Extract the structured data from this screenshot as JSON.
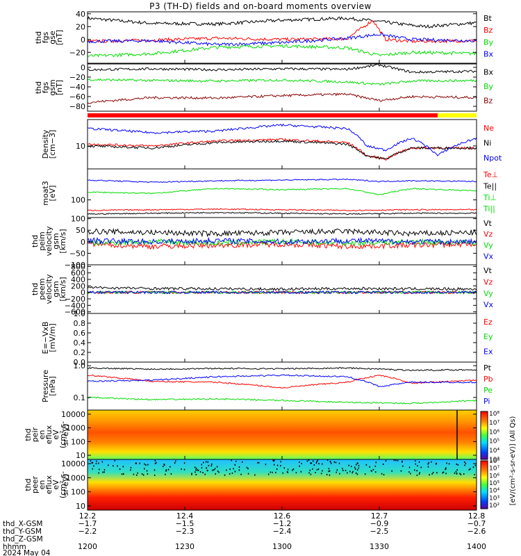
{
  "title": "P3 (TH-D) fields and on-board moments overview",
  "colors": {
    "black": "#000000",
    "red": "#ff0000",
    "green": "#00dd00",
    "blue": "#0000ff",
    "darkred": "#8b0000",
    "yellow": "#ffff00",
    "bar_red": "#ff0000"
  },
  "chart_data": [
    {
      "id": "fgs_gse",
      "type": "line",
      "ylabel": [
        "thd",
        "fgs",
        "gse",
        "[nT]"
      ],
      "ylim": [
        -37,
        43
      ],
      "yticks": [
        "40",
        "20",
        "0",
        "−20"
      ],
      "ytick_values": [
        40,
        20,
        0,
        -20
      ],
      "series": [
        {
          "name": "Bt",
          "color": "black",
          "x": [
            12.2,
            12.3,
            12.4,
            12.5,
            12.6,
            12.65,
            12.7,
            12.72,
            12.8
          ],
          "y": [
            33,
            25,
            24,
            30,
            33,
            28,
            22,
            20,
            26
          ]
        },
        {
          "name": "Bz",
          "color": "red",
          "x": [
            12.2,
            12.3,
            12.4,
            12.5,
            12.6,
            12.64,
            12.66,
            12.7,
            12.8
          ],
          "y": [
            -3,
            -1,
            2,
            0,
            1,
            30,
            0,
            -3,
            -2
          ]
        },
        {
          "name": "By",
          "color": "green",
          "x": [
            12.2,
            12.3,
            12.4,
            12.5,
            12.6,
            12.65,
            12.7,
            12.8
          ],
          "y": [
            -26,
            -22,
            -12,
            -10,
            -13,
            -25,
            -20,
            -22
          ]
        },
        {
          "name": "Bx",
          "color": "blue",
          "x": [
            12.2,
            12.3,
            12.4,
            12.5,
            12.6,
            12.65,
            12.7,
            12.8
          ],
          "y": [
            -3,
            -2,
            -8,
            -5,
            2,
            8,
            0,
            -2
          ]
        }
      ],
      "legend": [
        {
          "label": "Bt",
          "color": "black"
        },
        {
          "label": "Bz",
          "color": "red"
        },
        {
          "label": "By",
          "color": "green"
        },
        {
          "label": "Bx",
          "color": "blue"
        }
      ]
    },
    {
      "id": "fgs_gsm",
      "type": "line",
      "ylabel": [
        "thd",
        "fgs",
        "gsm",
        "[nT]"
      ],
      "ylim": [
        -90,
        7
      ],
      "yticks": [
        "0",
        "−20",
        "−40",
        "−60",
        "−80"
      ],
      "ytick_values": [
        0,
        -20,
        -40,
        -60,
        -80
      ],
      "series": [
        {
          "name": "Bx",
          "color": "black",
          "x": [
            12.2,
            12.3,
            12.4,
            12.5,
            12.6,
            12.65,
            12.7,
            12.8
          ],
          "y": [
            -5,
            -3,
            -5,
            -3,
            -4,
            5,
            -10,
            -8
          ]
        },
        {
          "name": "By",
          "color": "green",
          "x": [
            12.2,
            12.3,
            12.4,
            12.5,
            12.6,
            12.65,
            12.7,
            12.8
          ],
          "y": [
            -25,
            -27,
            -28,
            -26,
            -30,
            -35,
            -28,
            -27
          ]
        },
        {
          "name": "Bz",
          "color": "darkred",
          "x": [
            12.2,
            12.3,
            12.4,
            12.5,
            12.6,
            12.65,
            12.7,
            12.8
          ],
          "y": [
            -72,
            -62,
            -63,
            -58,
            -55,
            -68,
            -60,
            -62
          ]
        }
      ],
      "legend": [
        {
          "label": "Bx",
          "color": "black"
        },
        {
          "label": "By",
          "color": "green"
        },
        {
          "label": "Bz",
          "color": "darkred"
        }
      ]
    },
    {
      "id": "density",
      "type": "line",
      "scale": "log",
      "ylabel": [
        "Density",
        "[cm−3]"
      ],
      "ylim": [
        3,
        40
      ],
      "yticks": [
        "10"
      ],
      "ytick_values": [
        10
      ],
      "series": [
        {
          "name": "Ne",
          "color": "red",
          "x": [
            12.2,
            12.3,
            12.4,
            12.5,
            12.6,
            12.63,
            12.66,
            12.7,
            12.75,
            12.8
          ],
          "y": [
            11,
            10,
            13,
            14,
            12,
            6,
            5,
            9,
            9,
            9
          ]
        },
        {
          "name": "Ni",
          "color": "black",
          "x": [
            12.2,
            12.3,
            12.4,
            12.5,
            12.6,
            12.63,
            12.66,
            12.7,
            12.75,
            12.8
          ],
          "y": [
            10,
            9,
            12,
            13,
            11,
            6,
            5,
            9,
            9,
            9
          ]
        },
        {
          "name": "Npot",
          "color": "blue",
          "x": [
            12.2,
            12.3,
            12.4,
            12.5,
            12.6,
            12.63,
            12.66,
            12.7,
            12.74,
            12.8
          ],
          "y": [
            25,
            20,
            22,
            30,
            25,
            10,
            8,
            15,
            6,
            15
          ]
        }
      ],
      "legend": [
        {
          "label": "Ne",
          "color": "red"
        },
        {
          "label": "Ni",
          "color": "black"
        },
        {
          "label": "Npot",
          "color": "blue"
        }
      ]
    },
    {
      "id": "temperature",
      "type": "line",
      "scale": "log",
      "ylabel": [
        "moat3",
        "[eV]"
      ],
      "ylim": [
        40,
        500
      ],
      "yticks": [
        "100"
      ],
      "ytick_values": [
        100
      ],
      "series": [
        {
          "name": "Te⊥",
          "color": "red",
          "x": [
            12.2,
            12.3,
            12.4,
            12.5,
            12.6,
            12.7,
            12.8
          ],
          "y": [
            58,
            60,
            62,
            60,
            58,
            60,
            60
          ]
        },
        {
          "name": "Te||",
          "color": "black",
          "x": [
            12.2,
            12.3,
            12.4,
            12.5,
            12.6,
            12.7,
            12.8
          ],
          "y": [
            48,
            50,
            52,
            50,
            48,
            50,
            50
          ]
        },
        {
          "name": "Ti⊥",
          "color": "green",
          "x": [
            12.2,
            12.3,
            12.4,
            12.5,
            12.6,
            12.65,
            12.7,
            12.8
          ],
          "y": [
            150,
            140,
            180,
            170,
            180,
            130,
            180,
            160
          ]
        },
        {
          "name": "Ti||",
          "color": "blue",
          "x": [
            12.2,
            12.3,
            12.4,
            12.5,
            12.6,
            12.65,
            12.7,
            12.8
          ],
          "y": [
            280,
            250,
            270,
            280,
            290,
            260,
            270,
            260
          ]
        }
      ],
      "legend": [
        {
          "label": "Te⊥",
          "color": "red"
        },
        {
          "label": "Te||",
          "color": "black"
        },
        {
          "label": "Ti⊥",
          "color": "green"
        },
        {
          "label": "Ti||",
          "color": "green"
        }
      ]
    },
    {
      "id": "peim_velocity",
      "type": "line",
      "ylabel": [
        "thd",
        "peim",
        "velocity",
        "gsm",
        "[km/s]"
      ],
      "ylim": [
        -100,
        105
      ],
      "yticks": [
        "100",
        "50",
        "0",
        "−50",
        "−100"
      ],
      "ytick_values": [
        100,
        50,
        0,
        -50,
        -100
      ],
      "series": [
        {
          "name": "Vt",
          "color": "black",
          "x": [
            12.2,
            12.3,
            12.4,
            12.5,
            12.6,
            12.7,
            12.8
          ],
          "y": [
            45,
            40,
            35,
            40,
            45,
            35,
            40
          ]
        },
        {
          "name": "Vz",
          "color": "red",
          "x": [
            12.2,
            12.3,
            12.4,
            12.5,
            12.6,
            12.7,
            12.8
          ],
          "y": [
            -10,
            -20,
            -15,
            -10,
            -20,
            -15,
            -10
          ]
        },
        {
          "name": "Vy",
          "color": "green",
          "x": [
            12.2,
            12.3,
            12.4,
            12.5,
            12.6,
            12.7,
            12.8
          ],
          "y": [
            -5,
            0,
            -5,
            0,
            -5,
            0,
            -5
          ]
        },
        {
          "name": "Vx",
          "color": "blue",
          "x": [
            12.2,
            12.3,
            12.4,
            12.5,
            12.6,
            12.7,
            12.8
          ],
          "y": [
            5,
            0,
            5,
            0,
            5,
            0,
            0
          ]
        }
      ],
      "legend": [
        {
          "label": "Vt",
          "color": "black"
        },
        {
          "label": "Vz",
          "color": "red"
        },
        {
          "label": "Vy",
          "color": "green"
        },
        {
          "label": "Vx",
          "color": "blue"
        }
      ]
    },
    {
      "id": "peem_velocity",
      "type": "line",
      "ylabel": [
        "thd",
        "peem",
        "velocity",
        "gsm",
        "[km/s]"
      ],
      "ylim": [
        -650,
        850
      ],
      "yticks": [
        "800",
        "600",
        "400",
        "200",
        "0",
        "−200",
        "−400",
        "−600"
      ],
      "ytick_values": [
        800,
        600,
        400,
        200,
        0,
        -200,
        -400,
        -600
      ],
      "series": [
        {
          "name": "Vt",
          "color": "black",
          "x": [
            12.2,
            12.3,
            12.4,
            12.5,
            12.6,
            12.7,
            12.8
          ],
          "y": [
            150,
            120,
            110,
            100,
            120,
            110,
            100
          ]
        },
        {
          "name": "Vz",
          "color": "red",
          "x": [
            12.2,
            12.3,
            12.4,
            12.5,
            12.6,
            12.7,
            12.8
          ],
          "y": [
            0,
            0,
            0,
            0,
            0,
            0,
            0
          ]
        },
        {
          "name": "Vy",
          "color": "green",
          "x": [
            12.2,
            12.3,
            12.4,
            12.5,
            12.6,
            12.7,
            12.8
          ],
          "y": [
            0,
            0,
            0,
            0,
            0,
            0,
            0
          ]
        },
        {
          "name": "Vx",
          "color": "blue",
          "x": [
            12.2,
            12.3,
            12.4,
            12.5,
            12.6,
            12.7,
            12.8
          ],
          "y": [
            0,
            0,
            0,
            0,
            0,
            0,
            0
          ]
        }
      ],
      "legend": [
        {
          "label": "Vt",
          "color": "black"
        },
        {
          "label": "Vz",
          "color": "red"
        },
        {
          "label": "Vy",
          "color": "green"
        },
        {
          "label": "Vx",
          "color": "blue"
        }
      ]
    },
    {
      "id": "efield",
      "type": "line",
      "ylabel": [
        "E=−VxB",
        "[mV/m]"
      ],
      "ylim": [
        0,
        1
      ],
      "yticks": [
        "1.0",
        "0.8",
        "0.6",
        "0.4",
        "0.2",
        "0.0"
      ],
      "ytick_values": [
        1.0,
        0.8,
        0.6,
        0.4,
        0.2,
        0.0
      ],
      "series": [],
      "legend": [
        {
          "label": "Ez",
          "color": "red"
        },
        {
          "label": "Ey",
          "color": "green"
        },
        {
          "label": "Ex",
          "color": "blue"
        }
      ]
    },
    {
      "id": "pressure",
      "type": "line",
      "scale": "log",
      "ylabel": [
        "Pressure",
        "[nPa]"
      ],
      "ylim": [
        0.04,
        1.3
      ],
      "yticks": [
        "1.0",
        "0.1"
      ],
      "ytick_values": [
        1.0,
        0.1
      ],
      "series": [
        {
          "name": "Pt",
          "color": "black",
          "x": [
            12.2,
            12.3,
            12.4,
            12.5,
            12.6,
            12.7,
            12.8
          ],
          "y": [
            0.85,
            0.78,
            0.82,
            0.8,
            0.85,
            0.72,
            0.75
          ]
        },
        {
          "name": "Pb",
          "color": "red",
          "x": [
            12.2,
            12.3,
            12.4,
            12.5,
            12.6,
            12.65,
            12.7,
            12.8
          ],
          "y": [
            0.5,
            0.32,
            0.3,
            0.2,
            0.3,
            0.5,
            0.28,
            0.35
          ]
        },
        {
          "name": "Pe",
          "color": "green",
          "x": [
            12.2,
            12.3,
            12.4,
            12.5,
            12.6,
            12.7,
            12.8
          ],
          "y": [
            0.1,
            0.085,
            0.09,
            0.08,
            0.07,
            0.065,
            0.08
          ]
        },
        {
          "name": "Pi",
          "color": "blue",
          "x": [
            12.2,
            12.3,
            12.4,
            12.5,
            12.6,
            12.65,
            12.7,
            12.8
          ],
          "y": [
            0.32,
            0.35,
            0.45,
            0.5,
            0.45,
            0.22,
            0.3,
            0.3
          ]
        }
      ],
      "legend": [
        {
          "label": "Pt",
          "color": "black"
        },
        {
          "label": "Pb",
          "color": "red"
        },
        {
          "label": "Pe",
          "color": "green"
        },
        {
          "label": "Pi",
          "color": "blue"
        }
      ]
    },
    {
      "id": "peir_eflux",
      "type": "heatmap",
      "scale": "log",
      "ylabel": [
        "thd",
        "peir",
        "en",
        "eflux",
        "eV",
        "(cm²-s-",
        "sr-eV)"
      ],
      "ylim": [
        5,
        20000
      ],
      "yticks": [
        "10000",
        "1000",
        "100",
        "10"
      ],
      "ytick_values": [
        10000,
        1000,
        100,
        10
      ],
      "band_peak": 1000
    },
    {
      "id": "peer_eflux",
      "type": "heatmap",
      "scale": "log",
      "ylabel": [
        "thd",
        "peer",
        "en",
        "eflux",
        "eV",
        "(cm²-s-",
        "sr-eV)"
      ],
      "ylim": [
        5,
        20000
      ],
      "yticks": [
        "10000",
        "1000",
        "100",
        "10"
      ],
      "ytick_values": [
        10000,
        1000,
        100,
        10
      ],
      "band_peak": 30
    }
  ],
  "colorbar": {
    "ticks_top": [
      "10⁸",
      "10⁷",
      "10⁶",
      "10⁵",
      "10⁴",
      "10³"
    ],
    "ticks_bottom": [
      "10⁸",
      "10⁷",
      "10⁶",
      "10⁵",
      "10⁴",
      "10³",
      "10²"
    ],
    "label": "[eV/(cm²-s-sr-eV)] (All Qs)"
  },
  "xaxis": {
    "rows": [
      {
        "label": "",
        "values": [
          "12.2",
          "12.4",
          "12.6",
          "12.7",
          "12.8"
        ]
      },
      {
        "label": "thd_X-GSM",
        "values": [
          "−1.7",
          "−1.5",
          "−1.2",
          "−0.9",
          "−0.7"
        ]
      },
      {
        "label": "thd_Y-GSM",
        "values": [
          "−2.2",
          "−2.3",
          "−2.4",
          "−2.5",
          "−2.6"
        ]
      },
      {
        "label": "thd_Z-GSM",
        "values": [
          "",
          "",
          "",
          "",
          ""
        ]
      },
      {
        "label": "hhmm",
        "values": [
          "1200",
          "1230",
          "1300",
          "1330",
          "1400"
        ]
      }
    ],
    "date": "2024 May 04",
    "tick_positions": [
      0,
      0.25,
      0.5,
      0.75,
      1.0
    ]
  },
  "ephemeris_labels": [
    "thd_X-GSM",
    "thd_Y-GSM",
    "thd_Z-GSM",
    "hhmm"
  ]
}
